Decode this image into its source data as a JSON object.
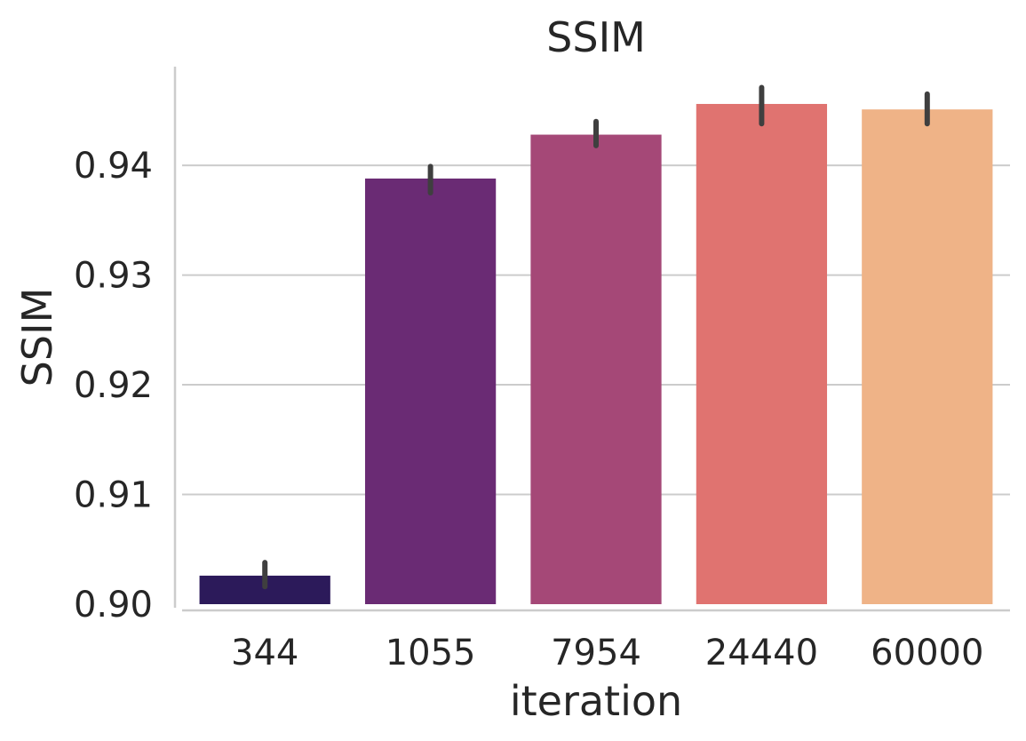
{
  "chart_data": {
    "type": "bar",
    "title": "SSIM",
    "xlabel": "iteration",
    "ylabel": "SSIM",
    "categories": [
      "344",
      "1055",
      "7954",
      "24440",
      "60000"
    ],
    "values": [
      0.9026,
      0.9388,
      0.9428,
      0.9456,
      0.9451
    ],
    "error_low": [
      0.9016,
      0.9375,
      0.9418,
      0.9438,
      0.9438
    ],
    "error_high": [
      0.9038,
      0.9399,
      0.944,
      0.9471,
      0.9465
    ],
    "colors": [
      "#2c1a5a",
      "#6a2b74",
      "#a54877",
      "#e07370",
      "#efb387"
    ],
    "ylim": [
      0.9,
      0.949
    ],
    "yticks": [
      0.9,
      0.91,
      0.92,
      0.93,
      0.94
    ],
    "ytick_labels": [
      "0.90",
      "0.91",
      "0.92",
      "0.93",
      "0.94"
    ],
    "grid": "horizontal",
    "legend": "none"
  }
}
